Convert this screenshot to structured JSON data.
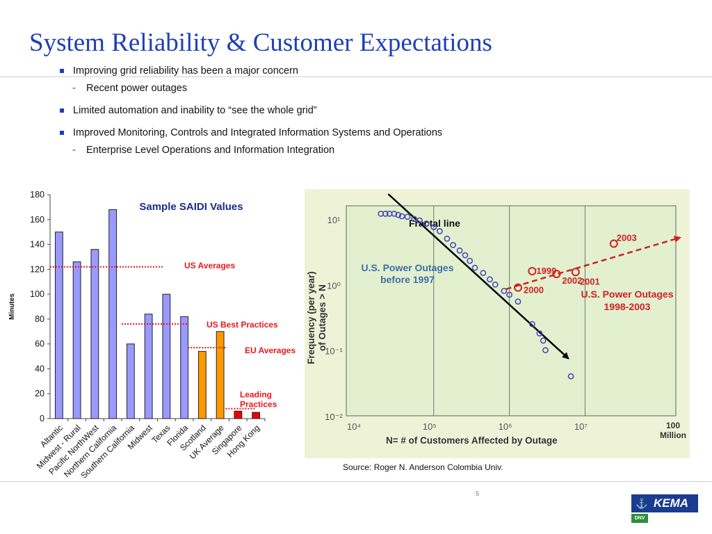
{
  "slide": {
    "title": "System Reliability & Customer Expectations",
    "bullets": [
      {
        "text": "Improving grid reliability has been a major concern",
        "sub": "Recent power outages"
      },
      {
        "text": "Limited automation and inability to “see the whole grid”"
      },
      {
        "text": "Improved Monitoring, Controls and Integrated Information Systems and Operations",
        "sub": "Enterprise Level Operations and Information Integration"
      }
    ],
    "source": "Source:  Roger N. Anderson Colombia Univ.",
    "page_number": "5",
    "logo": {
      "brand": "KEMA",
      "sub": "DNV"
    }
  },
  "colors": {
    "title": "#1f3fb6",
    "bar_purple": "#9999ff",
    "bar_orange": "#ff9900",
    "bar_red": "#ee0000",
    "annotation_red": "#e8161e",
    "navy": "#1b3b8e"
  },
  "chart_data": [
    {
      "type": "bar",
      "title": "Sample SAIDI Values",
      "xlabel": "",
      "ylabel": "Minutes",
      "ylim": [
        0,
        180
      ],
      "yticks": [
        0,
        20,
        40,
        60,
        80,
        100,
        120,
        140,
        160,
        180
      ],
      "grid": false,
      "categories": [
        "Altantic",
        "Midwest - Rural",
        "Pacific NorthWest",
        "Northern California",
        "Southern California",
        "Midwest",
        "Texas",
        "Florida",
        "Scotland",
        "UK Average",
        "Singapore",
        "Hong Kong"
      ],
      "values": [
        150,
        126,
        136,
        168,
        60,
        84,
        100,
        82,
        54,
        70,
        6,
        5
      ],
      "bar_colors": [
        "#9999ff",
        "#9999ff",
        "#9999ff",
        "#9999ff",
        "#9999ff",
        "#9999ff",
        "#9999ff",
        "#9999ff",
        "#ff9900",
        "#ff9900",
        "#ee0000",
        "#ee0000"
      ],
      "reference_lines": [
        {
          "label": "US Averages",
          "value": 122,
          "from": 0,
          "to": 6.3
        },
        {
          "label": "US Best Practices",
          "value": 76,
          "from": 4,
          "to": 7.7
        },
        {
          "label": "EU Averages",
          "value": 57,
          "from": 7.7,
          "to": 9.8
        },
        {
          "label": "Leading\nPractices",
          "value": 8,
          "from": 9.8,
          "to": 11.5
        }
      ]
    },
    {
      "type": "scatter",
      "title": "",
      "xlabel": "N= # of Customers Affected by Outage",
      "ylabel": "Frequency (per year) of Outages > N",
      "x_scale": "log",
      "y_scale": "log",
      "xticks": [
        "10⁴",
        "10⁵",
        "10⁶",
        "10⁷",
        "100 Million"
      ],
      "yticks": [
        "10¹",
        "10⁰",
        "10⁻¹",
        "10⁻²"
      ],
      "fit_line": {
        "label": "Fractal line",
        "x": [
          25000,
          6000000
        ],
        "y": [
          24,
          0.075
        ]
      },
      "series": [
        {
          "name": "U.S. Power Outages before 1997",
          "x": [
            20000,
            23000,
            26000,
            30000,
            34000,
            38000,
            45000,
            55000,
            65000,
            80000,
            100000,
            120000,
            150000,
            180000,
            220000,
            260000,
            300000,
            350000,
            450000,
            550000,
            650000,
            850000,
            1000000,
            1300000,
            2000000,
            2500000,
            2800000,
            3000000,
            6500000
          ],
          "y": [
            12,
            12,
            12,
            12,
            11.5,
            11,
            10.8,
            10,
            9.5,
            8.5,
            7.5,
            6.5,
            5,
            4,
            3.3,
            2.8,
            2.3,
            1.8,
            1.5,
            1.2,
            1.0,
            0.8,
            0.7,
            0.55,
            0.25,
            0.18,
            0.14,
            0.1,
            0.04
          ]
        },
        {
          "name": "U.S. Power Outages 1998-2003",
          "x": [
            1300000,
            2000000,
            4200000,
            7500000,
            24000000
          ],
          "y": [
            0.9,
            1.6,
            1.45,
            1.55,
            4.2
          ],
          "labels": [
            "2000",
            "1999",
            "2002",
            "2001",
            "2003"
          ]
        }
      ]
    }
  ]
}
